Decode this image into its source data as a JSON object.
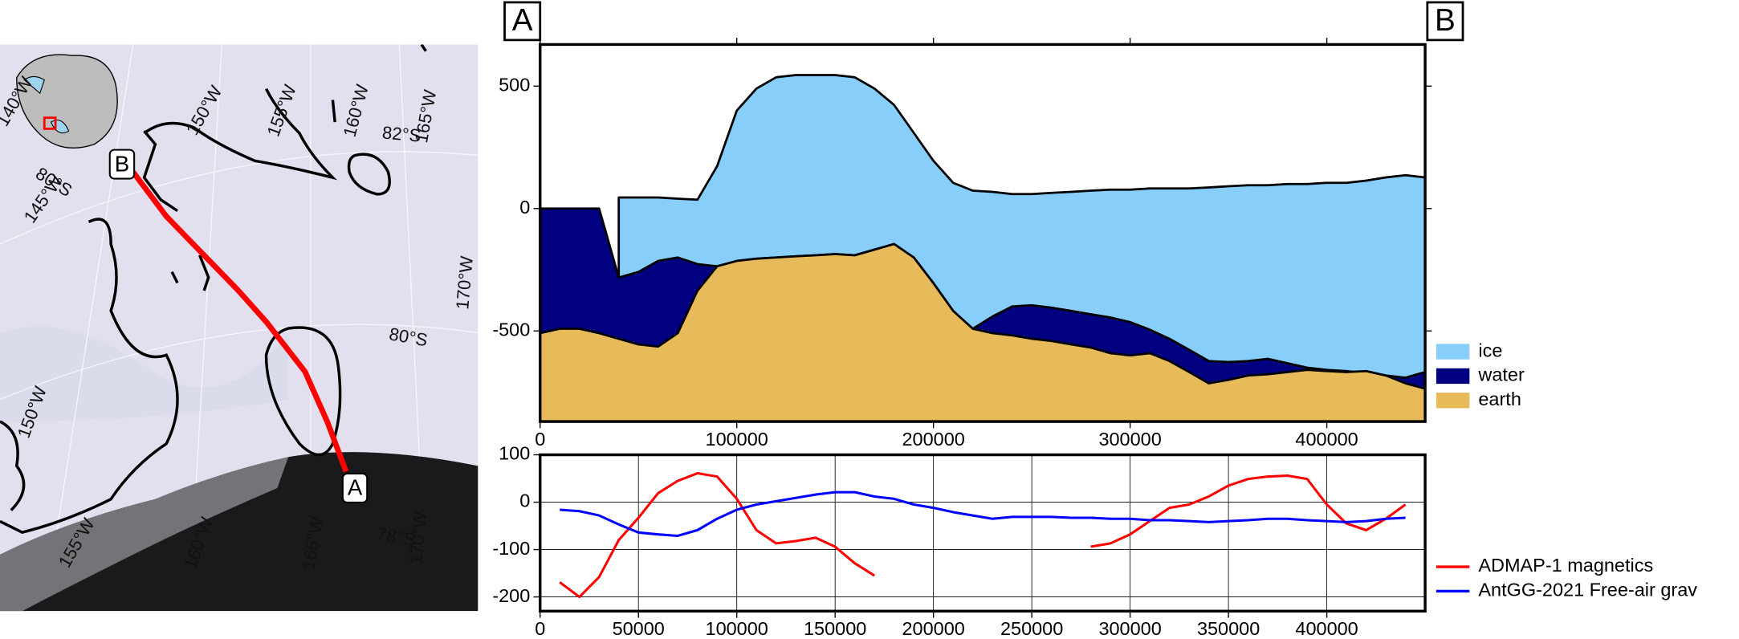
{
  "chart_data": [
    {
      "type": "map",
      "labels": [
        "150°W",
        "155°W",
        "160°W",
        "165°W",
        "82°S",
        "145°W",
        "80°S",
        "170°W",
        "80°S",
        "150°W",
        "155°W",
        "160°W",
        "165°W",
        "78°S",
        "170°W",
        "140°W"
      ],
      "markers": [
        "B",
        "A"
      ]
    },
    {
      "type": "area",
      "annotations": [
        "A",
        "B"
      ],
      "x": [
        0,
        10000,
        20000,
        30000,
        40000,
        50000,
        60000,
        70000,
        80000,
        90000,
        100000,
        110000,
        120000,
        130000,
        140000,
        150000,
        160000,
        170000,
        180000,
        190000,
        200000,
        210000,
        220000,
        230000,
        240000,
        250000,
        260000,
        270000,
        280000,
        290000,
        300000,
        310000,
        320000,
        330000,
        340000,
        350000,
        360000,
        370000,
        380000,
        390000,
        400000,
        410000,
        420000,
        430000,
        440000,
        450000
      ],
      "xlim": [
        0,
        450000
      ],
      "ylim": [
        -870,
        670
      ],
      "xticks": [
        0,
        100000,
        200000,
        300000,
        400000
      ],
      "yticks": [
        -500,
        0,
        500
      ],
      "series": [
        {
          "name": "ice",
          "color": "#87cefa",
          "values": [
            null,
            null,
            null,
            null,
            45,
            45,
            45,
            40,
            36,
            173,
            400,
            490,
            536,
            545,
            545,
            545,
            536,
            490,
            423,
            309,
            195,
            105,
            73,
            68,
            59,
            59,
            64,
            68,
            73,
            77,
            77,
            82,
            82,
            82,
            86,
            91,
            95,
            95,
            100,
            100,
            105,
            105,
            114,
            127,
            136,
            127
          ]
        },
        {
          "name": "water",
          "color": "#000080",
          "values": [
            0,
            0,
            0,
            0,
            -282,
            -259,
            -214,
            -200,
            -227,
            -236,
            -214,
            -205,
            -200,
            -195,
            -191,
            -186,
            -191,
            -168,
            -145,
            -200,
            -305,
            -418,
            -491,
            -441,
            -400,
            -395,
            -405,
            -418,
            -432,
            -445,
            -464,
            -495,
            -532,
            -577,
            -623,
            -627,
            -623,
            -614,
            -632,
            -650,
            -659,
            -664,
            -673,
            -682,
            -691,
            -668
          ]
        },
        {
          "name": "earth",
          "color": "#e8bb5a",
          "values": [
            -509,
            -491,
            -491,
            -509,
            -532,
            -555,
            -564,
            -509,
            -336,
            -236,
            -214,
            -205,
            -200,
            -195,
            -191,
            -186,
            -191,
            -168,
            -145,
            -200,
            -305,
            -418,
            -491,
            -509,
            -518,
            -532,
            -541,
            -555,
            -568,
            -591,
            -600,
            -591,
            -623,
            -668,
            -714,
            -700,
            -682,
            -677,
            -668,
            -659,
            -664,
            -668,
            -664,
            -682,
            -714,
            -736
          ]
        }
      ]
    },
    {
      "type": "line",
      "x": [
        10000,
        20000,
        30000,
        40000,
        50000,
        60000,
        70000,
        80000,
        90000,
        100000,
        110000,
        120000,
        130000,
        140000,
        150000,
        160000,
        170000,
        180000,
        190000,
        200000,
        210000,
        220000,
        230000,
        240000,
        250000,
        260000,
        270000,
        280000,
        290000,
        300000,
        310000,
        320000,
        330000,
        340000,
        350000,
        360000,
        370000,
        380000,
        390000,
        400000,
        410000,
        420000,
        430000,
        440000
      ],
      "xlim": [
        0,
        450000
      ],
      "ylim": [
        -230,
        100
      ],
      "xticks": [
        0,
        50000,
        100000,
        150000,
        200000,
        250000,
        300000,
        350000,
        400000
      ],
      "yticks": [
        -200,
        -100,
        0,
        100
      ],
      "grid": true,
      "series": [
        {
          "name": "ADMAP-1 magnetics",
          "color": "#ff0000",
          "values": [
            -169,
            -200,
            -158,
            -80,
            -33,
            19,
            45,
            61,
            54,
            7,
            -59,
            -87,
            -82,
            -75,
            -94,
            -129,
            -155,
            null,
            null,
            null,
            null,
            null,
            null,
            null,
            null,
            null,
            null,
            -94,
            -87,
            -68,
            -40,
            -12,
            -5,
            12,
            35,
            49,
            54,
            56,
            49,
            -5,
            -45,
            -59,
            -35,
            -5
          ]
        },
        {
          "name": "AntGG-2021 Free-air grav",
          "color": "#0000ff",
          "values": [
            -16,
            -19,
            -28,
            -47,
            -64,
            -68,
            -71,
            -59,
            -35,
            -16,
            -5,
            2,
            9,
            16,
            21,
            21,
            12,
            7,
            -5,
            -12,
            -21,
            -28,
            -35,
            -31,
            -31,
            -31,
            -33,
            -33,
            -35,
            -35,
            -38,
            -38,
            -40,
            -42,
            -40,
            -38,
            -35,
            -35,
            -38,
            -40,
            -42,
            -40,
            -35,
            -33
          ]
        }
      ]
    }
  ]
}
